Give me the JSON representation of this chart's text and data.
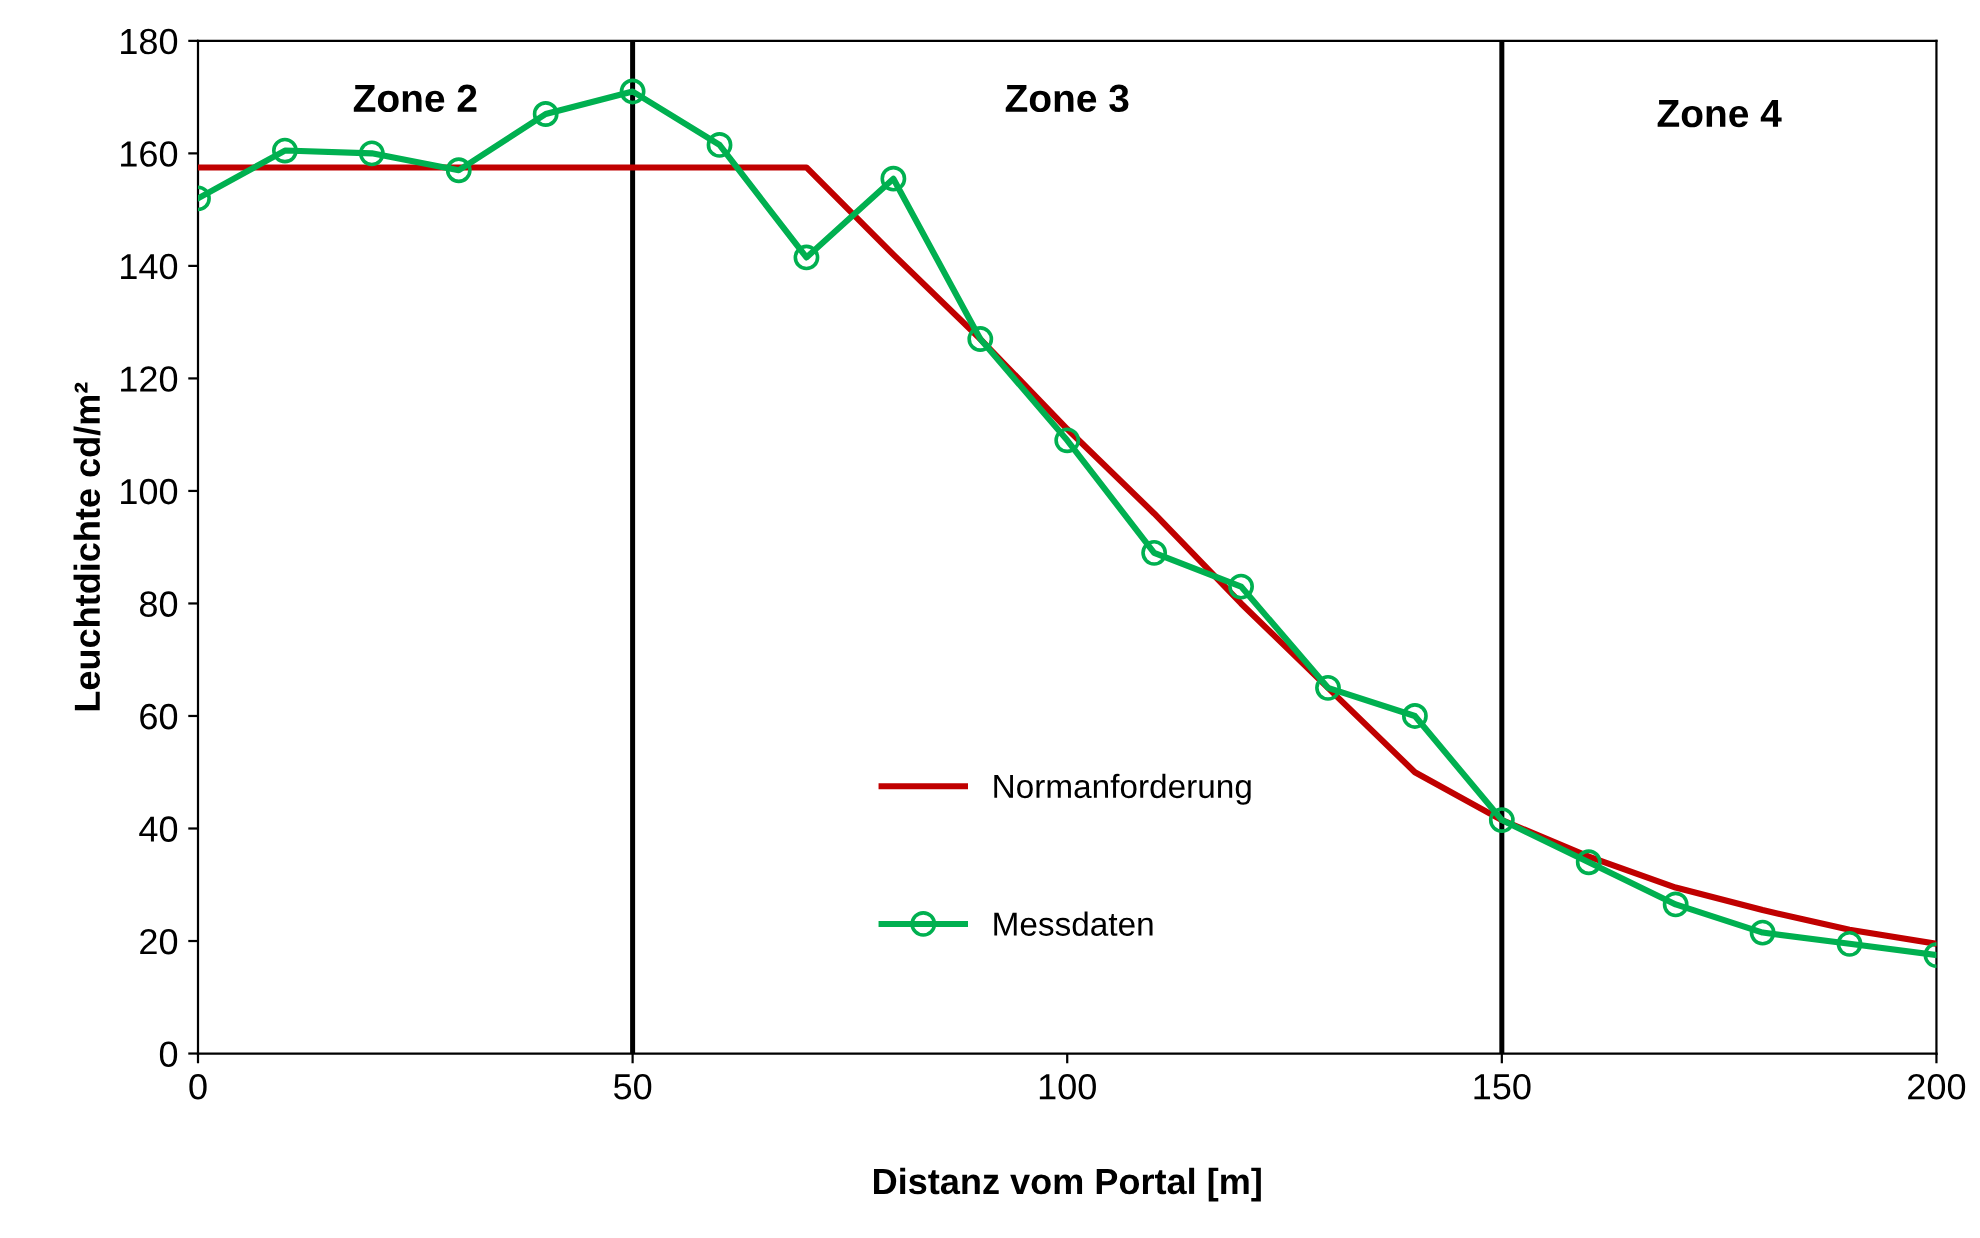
{
  "chart_data": {
    "type": "line",
    "xlabel": "Distanz vom Portal [m]",
    "ylabel": "Leuchtdichte cd/m²",
    "xlim": [
      0,
      200
    ],
    "xticks": [
      0,
      50,
      100,
      150,
      200
    ],
    "ylim": [
      0,
      180
    ],
    "yticks": [
      0,
      20,
      40,
      60,
      80,
      100,
      120,
      140,
      160,
      180
    ],
    "grid": false,
    "legend": "bottom",
    "line_style": "solid",
    "series": [
      {
        "name": "Normanforderung",
        "color": "#c00000",
        "marker": "none",
        "x": [
          0,
          70,
          80,
          90,
          100,
          110,
          120,
          130,
          140,
          150,
          160,
          170,
          180,
          190,
          200
        ],
        "values": [
          157.5,
          157.5,
          142,
          127,
          111,
          96,
          80,
          65,
          50,
          41.5,
          35,
          29.5,
          25.5,
          22,
          19.5
        ]
      },
      {
        "name": "Messdaten",
        "color": "#00b050",
        "marker": "circle",
        "x": [
          0,
          10,
          20,
          30,
          40,
          50,
          60,
          70,
          80,
          90,
          100,
          110,
          120,
          130,
          140,
          150,
          160,
          170,
          180,
          190,
          200
        ],
        "values": [
          152,
          160.5,
          160,
          157,
          167,
          171,
          161.5,
          141.5,
          155.5,
          127,
          109,
          89,
          83,
          65,
          60,
          41.5,
          34,
          26.5,
          21.5,
          19.5,
          17.5
        ]
      }
    ],
    "ref_lines": [
      {
        "axis": "x",
        "value": 50,
        "color": "#000000"
      },
      {
        "axis": "x",
        "value": 150,
        "color": "#000000"
      }
    ],
    "annotations": [
      "Zone 2",
      "Zone 3",
      "Zone 4"
    ]
  }
}
